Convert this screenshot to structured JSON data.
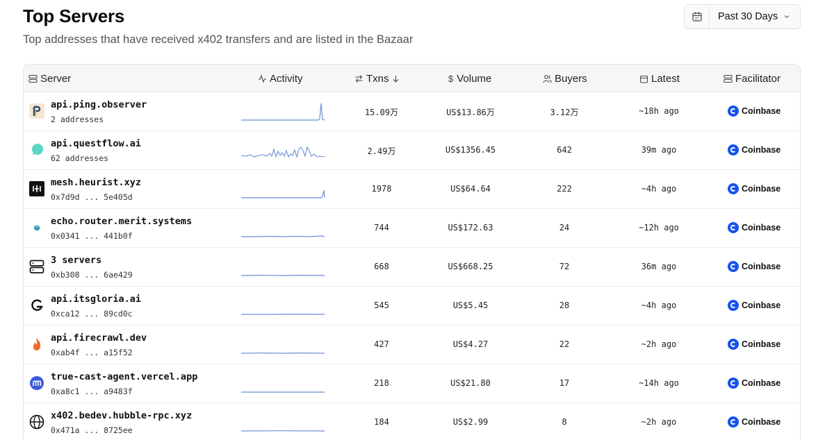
{
  "header": {
    "title": "Top Servers",
    "subtitle": "Top addresses that have received x402 transfers and are listed in the Bazaar"
  },
  "date_range": {
    "selected": "Past 30 Days",
    "icon": "calendar-icon"
  },
  "columns": {
    "server": "Server",
    "activity": "Activity",
    "txns": "Txns",
    "volume": "Volume",
    "buyers": "Buyers",
    "latest": "Latest",
    "facilitator": "Facilitator"
  },
  "rows": [
    {
      "name": "api.ping.observer",
      "sub": "2 addresses",
      "txns": "15.09万",
      "volume": "US$13.86万",
      "buyers": "3.12万",
      "latest": "~18h ago",
      "facilitator": "Coinbase",
      "logo": "ping-observer-logo"
    },
    {
      "name": "api.questflow.ai",
      "sub": "62 addresses",
      "txns": "2.49万",
      "volume": "US$1356.45",
      "buyers": "642",
      "latest": "39m ago",
      "facilitator": "Coinbase",
      "logo": "questflow-logo"
    },
    {
      "name": "mesh.heurist.xyz",
      "sub": "0x7d9d ... 5e405d",
      "txns": "1978",
      "volume": "US$64.64",
      "buyers": "222",
      "latest": "~4h ago",
      "facilitator": "Coinbase",
      "logo": "heurist-logo"
    },
    {
      "name": "echo.router.merit.systems",
      "sub": "0x0341 ... 441b0f",
      "txns": "744",
      "volume": "US$172.63",
      "buyers": "24",
      "latest": "~12h ago",
      "facilitator": "Coinbase",
      "logo": "merit-logo"
    },
    {
      "name": "3 servers",
      "sub": "0xb308 ... 6ae429",
      "txns": "668",
      "volume": "US$668.25",
      "buyers": "72",
      "latest": "36m ago",
      "facilitator": "Coinbase",
      "logo": "servers-icon"
    },
    {
      "name": "api.itsgloria.ai",
      "sub": "0xca12 ... 89cd0c",
      "txns": "545",
      "volume": "US$5.45",
      "buyers": "28",
      "latest": "~4h ago",
      "facilitator": "Coinbase",
      "logo": "gloria-logo"
    },
    {
      "name": "api.firecrawl.dev",
      "sub": "0xab4f ... a15f52",
      "txns": "427",
      "volume": "US$4.27",
      "buyers": "22",
      "latest": "~2h ago",
      "facilitator": "Coinbase",
      "logo": "firecrawl-logo"
    },
    {
      "name": "true-cast-agent.vercel.app",
      "sub": "0xa8c1 ... a9483f",
      "txns": "218",
      "volume": "US$21.80",
      "buyers": "17",
      "latest": "~14h ago",
      "facilitator": "Coinbase",
      "logo": "truecast-logo"
    },
    {
      "name": "x402.bedev.hubble-rpc.xyz",
      "sub": "0x471a ... 8725ee",
      "txns": "184",
      "volume": "US$2.99",
      "buyers": "8",
      "latest": "~2h ago",
      "facilitator": "Coinbase",
      "logo": "globe-icon"
    }
  ],
  "colors": {
    "sparkline": "#6b8fd6",
    "coinbase": "#1652f0"
  }
}
